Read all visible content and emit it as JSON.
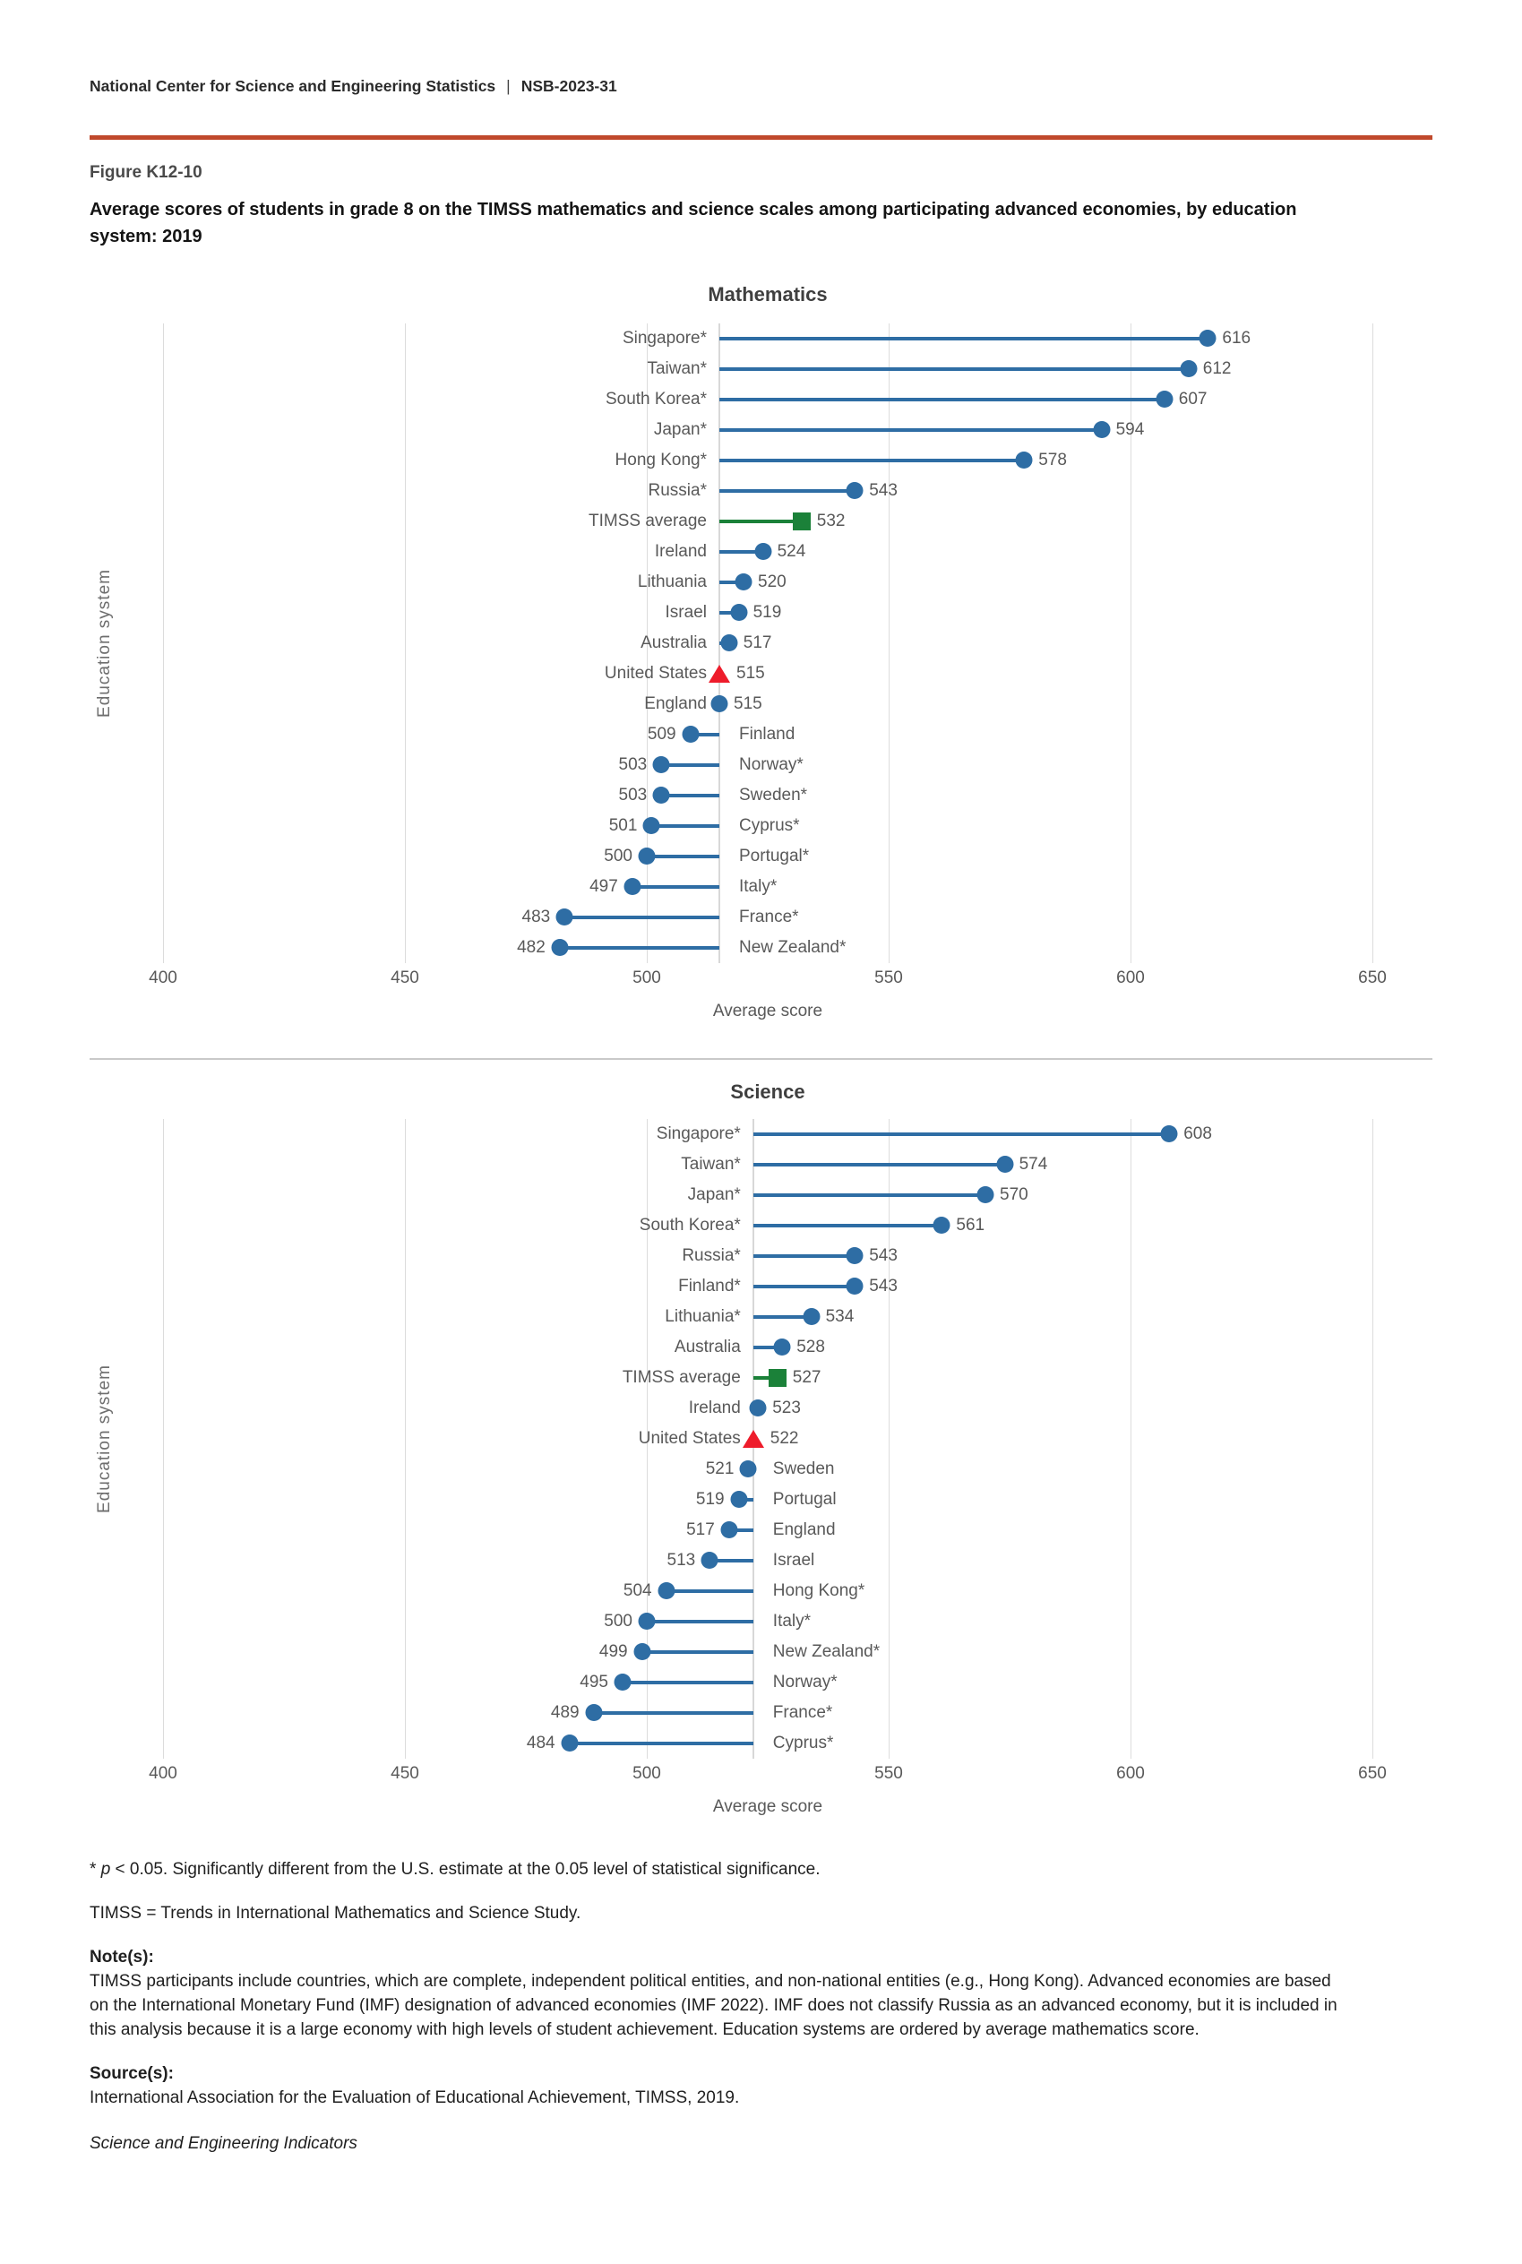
{
  "header": {
    "org": "National Center for Science and Engineering Statistics",
    "separator": "|",
    "report_id": "NSB-2023-31"
  },
  "figure": {
    "label": "Figure K12-10",
    "title": "Average scores of students in grade 8 on the TIMSS mathematics and science scales among participating advanced economies, by education system: 2019"
  },
  "colors": {
    "accent_rule": "#c0492c",
    "dot_blue": "#2e6da4",
    "timss_green": "#1b8139",
    "us_red": "#ee1c2b",
    "gridline": "#dcdcdc",
    "text_gray": "#595959"
  },
  "chart_data": [
    {
      "type": "bar",
      "variant": "lollipop",
      "title": "Mathematics",
      "xlabel": "Average score",
      "ylabel": "Education system",
      "xlim": [
        400,
        650
      ],
      "xticks": [
        400,
        450,
        500,
        550,
        600,
        650
      ],
      "baseline": 515,
      "grid": true,
      "rows": [
        {
          "label": "Singapore*",
          "value": 616,
          "marker": "circle"
        },
        {
          "label": "Taiwan*",
          "value": 612,
          "marker": "circle"
        },
        {
          "label": "South Korea*",
          "value": 607,
          "marker": "circle"
        },
        {
          "label": "Japan*",
          "value": 594,
          "marker": "circle"
        },
        {
          "label": "Hong Kong*",
          "value": 578,
          "marker": "circle"
        },
        {
          "label": "Russia*",
          "value": 543,
          "marker": "circle"
        },
        {
          "label": "TIMSS average",
          "value": 532,
          "marker": "square"
        },
        {
          "label": "Ireland",
          "value": 524,
          "marker": "circle"
        },
        {
          "label": "Lithuania",
          "value": 520,
          "marker": "circle"
        },
        {
          "label": "Israel",
          "value": 519,
          "marker": "circle"
        },
        {
          "label": "Australia",
          "value": 517,
          "marker": "circle"
        },
        {
          "label": "United States",
          "value": 515,
          "marker": "triangle"
        },
        {
          "label": "England",
          "value": 515,
          "marker": "circle"
        },
        {
          "label": "Finland",
          "value": 509,
          "marker": "circle"
        },
        {
          "label": "Norway*",
          "value": 503,
          "marker": "circle"
        },
        {
          "label": "Sweden*",
          "value": 503,
          "marker": "circle"
        },
        {
          "label": "Cyprus*",
          "value": 501,
          "marker": "circle"
        },
        {
          "label": "Portugal*",
          "value": 500,
          "marker": "circle"
        },
        {
          "label": "Italy*",
          "value": 497,
          "marker": "circle"
        },
        {
          "label": "France*",
          "value": 483,
          "marker": "circle"
        },
        {
          "label": "New Zealand*",
          "value": 482,
          "marker": "circle"
        }
      ]
    },
    {
      "type": "bar",
      "variant": "lollipop",
      "title": "Science",
      "xlabel": "Average score",
      "ylabel": "Education system",
      "xlim": [
        400,
        650
      ],
      "xticks": [
        400,
        450,
        500,
        550,
        600,
        650
      ],
      "baseline": 522,
      "grid": true,
      "rows": [
        {
          "label": "Singapore*",
          "value": 608,
          "marker": "circle"
        },
        {
          "label": "Taiwan*",
          "value": 574,
          "marker": "circle"
        },
        {
          "label": "Japan*",
          "value": 570,
          "marker": "circle"
        },
        {
          "label": "South Korea*",
          "value": 561,
          "marker": "circle"
        },
        {
          "label": "Russia*",
          "value": 543,
          "marker": "circle"
        },
        {
          "label": "Finland*",
          "value": 543,
          "marker": "circle"
        },
        {
          "label": "Lithuania*",
          "value": 534,
          "marker": "circle"
        },
        {
          "label": "Australia",
          "value": 528,
          "marker": "circle"
        },
        {
          "label": "TIMSS average",
          "value": 527,
          "marker": "square"
        },
        {
          "label": "Ireland",
          "value": 523,
          "marker": "circle"
        },
        {
          "label": "United States",
          "value": 522,
          "marker": "triangle"
        },
        {
          "label": "Sweden",
          "value": 521,
          "marker": "circle"
        },
        {
          "label": "Portugal",
          "value": 519,
          "marker": "circle"
        },
        {
          "label": "England",
          "value": 517,
          "marker": "circle"
        },
        {
          "label": "Israel",
          "value": 513,
          "marker": "circle"
        },
        {
          "label": "Hong Kong*",
          "value": 504,
          "marker": "circle"
        },
        {
          "label": "Italy*",
          "value": 500,
          "marker": "circle"
        },
        {
          "label": "New Zealand*",
          "value": 499,
          "marker": "circle"
        },
        {
          "label": "Norway*",
          "value": 495,
          "marker": "circle"
        },
        {
          "label": "France*",
          "value": 489,
          "marker": "circle"
        },
        {
          "label": "Cyprus*",
          "value": 484,
          "marker": "circle"
        }
      ]
    }
  ],
  "footnotes": {
    "sig": {
      "prefix": "* ",
      "italic": "p",
      "rest": " < 0.05. Significantly different from the U.S. estimate at the 0.05 level of statistical significance."
    },
    "timss_def": "TIMSS = Trends in International Mathematics and Science Study.",
    "notes_label": "Note(s):",
    "notes_text": "TIMSS participants include countries, which are complete, independent political entities, and non-national entities (e.g., Hong Kong). Advanced economies are based on the International Monetary Fund (IMF) designation of advanced economies (IMF 2022). IMF does not classify Russia as an advanced economy, but it is included in this analysis because it is a large economy with high levels of student achievement. Education systems are ordered by average mathematics score.",
    "source_label": "Source(s):",
    "source_text": "International Association for the Evaluation of Educational Achievement, TIMSS, 2019.",
    "footer": "Science and Engineering Indicators"
  }
}
